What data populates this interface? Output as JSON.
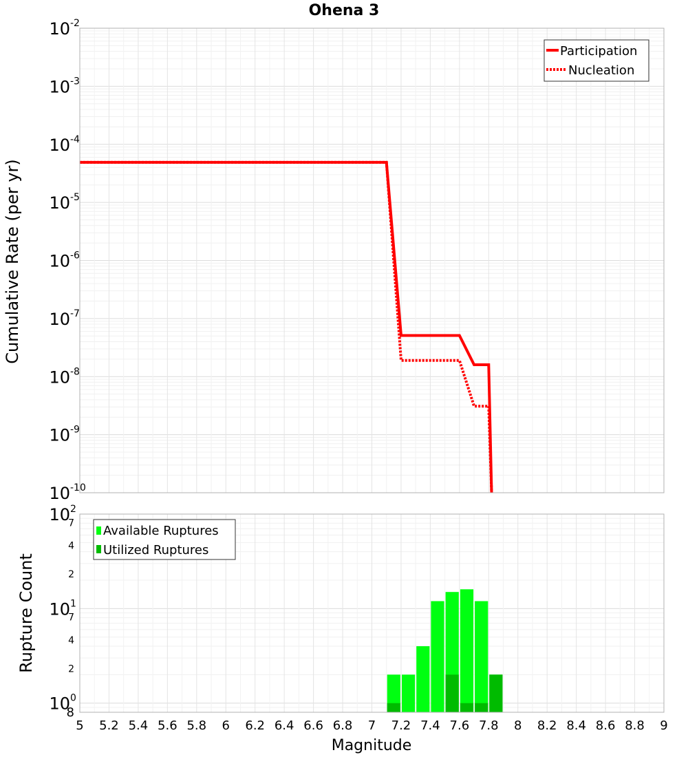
{
  "chart_data": [
    {
      "type": "line",
      "title": "Ohena 3",
      "xlabel": "Magnitude",
      "ylabel": "Cumulative Rate (per yr)",
      "xlim": [
        5,
        9
      ],
      "ylim": [
        1e-10,
        0.01
      ],
      "y_scale": "log",
      "grid": true,
      "legend_position": "top-right",
      "y_tick_labels": [
        {
          "base": "10",
          "exp": "-2"
        },
        {
          "base": "10",
          "exp": "-3"
        },
        {
          "base": "10",
          "exp": "-4"
        },
        {
          "base": "10",
          "exp": "-5"
        },
        {
          "base": "10",
          "exp": "-6"
        },
        {
          "base": "10",
          "exp": "-7"
        },
        {
          "base": "10",
          "exp": "-8"
        },
        {
          "base": "10",
          "exp": "-9"
        },
        {
          "base": "10",
          "exp": "-10"
        }
      ],
      "series": [
        {
          "name": "Participation",
          "color": "#ff0000",
          "style": "solid",
          "x": [
            5.0,
            7.1,
            7.2,
            7.3,
            7.4,
            7.5,
            7.6,
            7.7,
            7.8,
            7.82
          ],
          "y": [
            4.9e-05,
            4.9e-05,
            5.1e-08,
            5.1e-08,
            5.1e-08,
            5.1e-08,
            5.1e-08,
            1.6e-08,
            1.6e-08,
            1e-10
          ]
        },
        {
          "name": "Nucleation",
          "color": "#ff0000",
          "style": "dotted",
          "x": [
            5.0,
            7.1,
            7.2,
            7.3,
            7.4,
            7.5,
            7.6,
            7.7,
            7.8,
            7.82
          ],
          "y": [
            4.9e-05,
            4.9e-05,
            1.9e-08,
            1.9e-08,
            1.9e-08,
            1.9e-08,
            1.9e-08,
            3.1e-09,
            3.1e-09,
            1e-10
          ]
        }
      ]
    },
    {
      "type": "bar",
      "xlabel": "Magnitude",
      "ylabel": "Rupture Count",
      "xlim": [
        5,
        9
      ],
      "ylim": [
        0.8,
        100
      ],
      "y_scale": "log",
      "grid": true,
      "legend_position": "top-left",
      "x_tick_labels": [
        "5",
        "5.2",
        "5.4",
        "5.6",
        "5.8",
        "6",
        "6.2",
        "6.4",
        "6.6",
        "6.8",
        "7",
        "7.2",
        "7.4",
        "7.6",
        "7.8",
        "8",
        "8.2",
        "8.4",
        "8.6",
        "8.8",
        "9"
      ],
      "y_major_labels": [
        {
          "base": "10",
          "exp": "2"
        },
        {
          "base": "10",
          "exp": "1"
        },
        {
          "base": "10",
          "exp": "0"
        }
      ],
      "y_minor_labels": [
        {
          "value": 70,
          "label": "7"
        },
        {
          "value": 40,
          "label": "4"
        },
        {
          "value": 20,
          "label": "2"
        },
        {
          "value": 7,
          "label": "7"
        },
        {
          "value": 4,
          "label": "4"
        },
        {
          "value": 2,
          "label": "2"
        }
      ],
      "y_bottom_label": "8",
      "bin_width": 0.1,
      "series": [
        {
          "name": "Available Ruptures",
          "color": "#00ff11",
          "x": [
            7.15,
            7.25,
            7.35,
            7.45,
            7.55,
            7.65,
            7.75,
            7.85
          ],
          "values": [
            2,
            2,
            4,
            12,
            15,
            16,
            12,
            2
          ]
        },
        {
          "name": "Utilized Ruptures",
          "color": "#00bb00",
          "x": [
            7.15,
            7.55,
            7.65,
            7.75,
            7.85
          ],
          "values": [
            1,
            2,
            1,
            1,
            2
          ]
        }
      ]
    }
  ]
}
